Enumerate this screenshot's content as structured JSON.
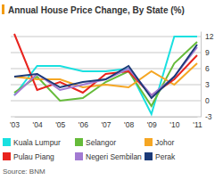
{
  "chart_data": {
    "type": "line",
    "title": "Annual House Price Change, By State (%)",
    "source": "Source: BNM",
    "categories": [
      "'03",
      "'04",
      "'05",
      "'06",
      "'07",
      "'08",
      "'09",
      "'10",
      "'11"
    ],
    "series": [
      {
        "name": "Kuala Lumpur",
        "color": "#19e0e0",
        "values": [
          1,
          6.5,
          6.5,
          5.5,
          5.5,
          6,
          -2.5,
          12,
          12
        ]
      },
      {
        "name": "Selangor",
        "color": "#66bb3a",
        "values": [
          1.5,
          4.5,
          0,
          0.5,
          3.5,
          5.5,
          -1,
          7,
          11
        ]
      },
      {
        "name": "Johor",
        "color": "#f5a623",
        "values": [
          4.5,
          4,
          4,
          2.5,
          3,
          2.5,
          5.5,
          3,
          7
        ]
      },
      {
        "name": "Pulau Piang",
        "color": "#e8231e",
        "values": [
          12.5,
          2,
          3.5,
          1.5,
          5,
          5.5,
          1,
          4,
          8.5
        ]
      },
      {
        "name": "Negeri Sembilan",
        "color": "#a27ad2",
        "values": [
          1,
          5,
          2,
          3,
          4,
          6,
          1,
          4.5,
          10
        ]
      },
      {
        "name": "Perak",
        "color": "#1c3a78",
        "values": [
          4.5,
          5,
          2.5,
          3.5,
          4,
          6.5,
          0.5,
          4.5,
          10.5
        ]
      }
    ],
    "ylim": [
      -3,
      13
    ],
    "yticks": [
      -3,
      0,
      3,
      6,
      9,
      12
    ],
    "grid": true,
    "legend": "bottom"
  }
}
